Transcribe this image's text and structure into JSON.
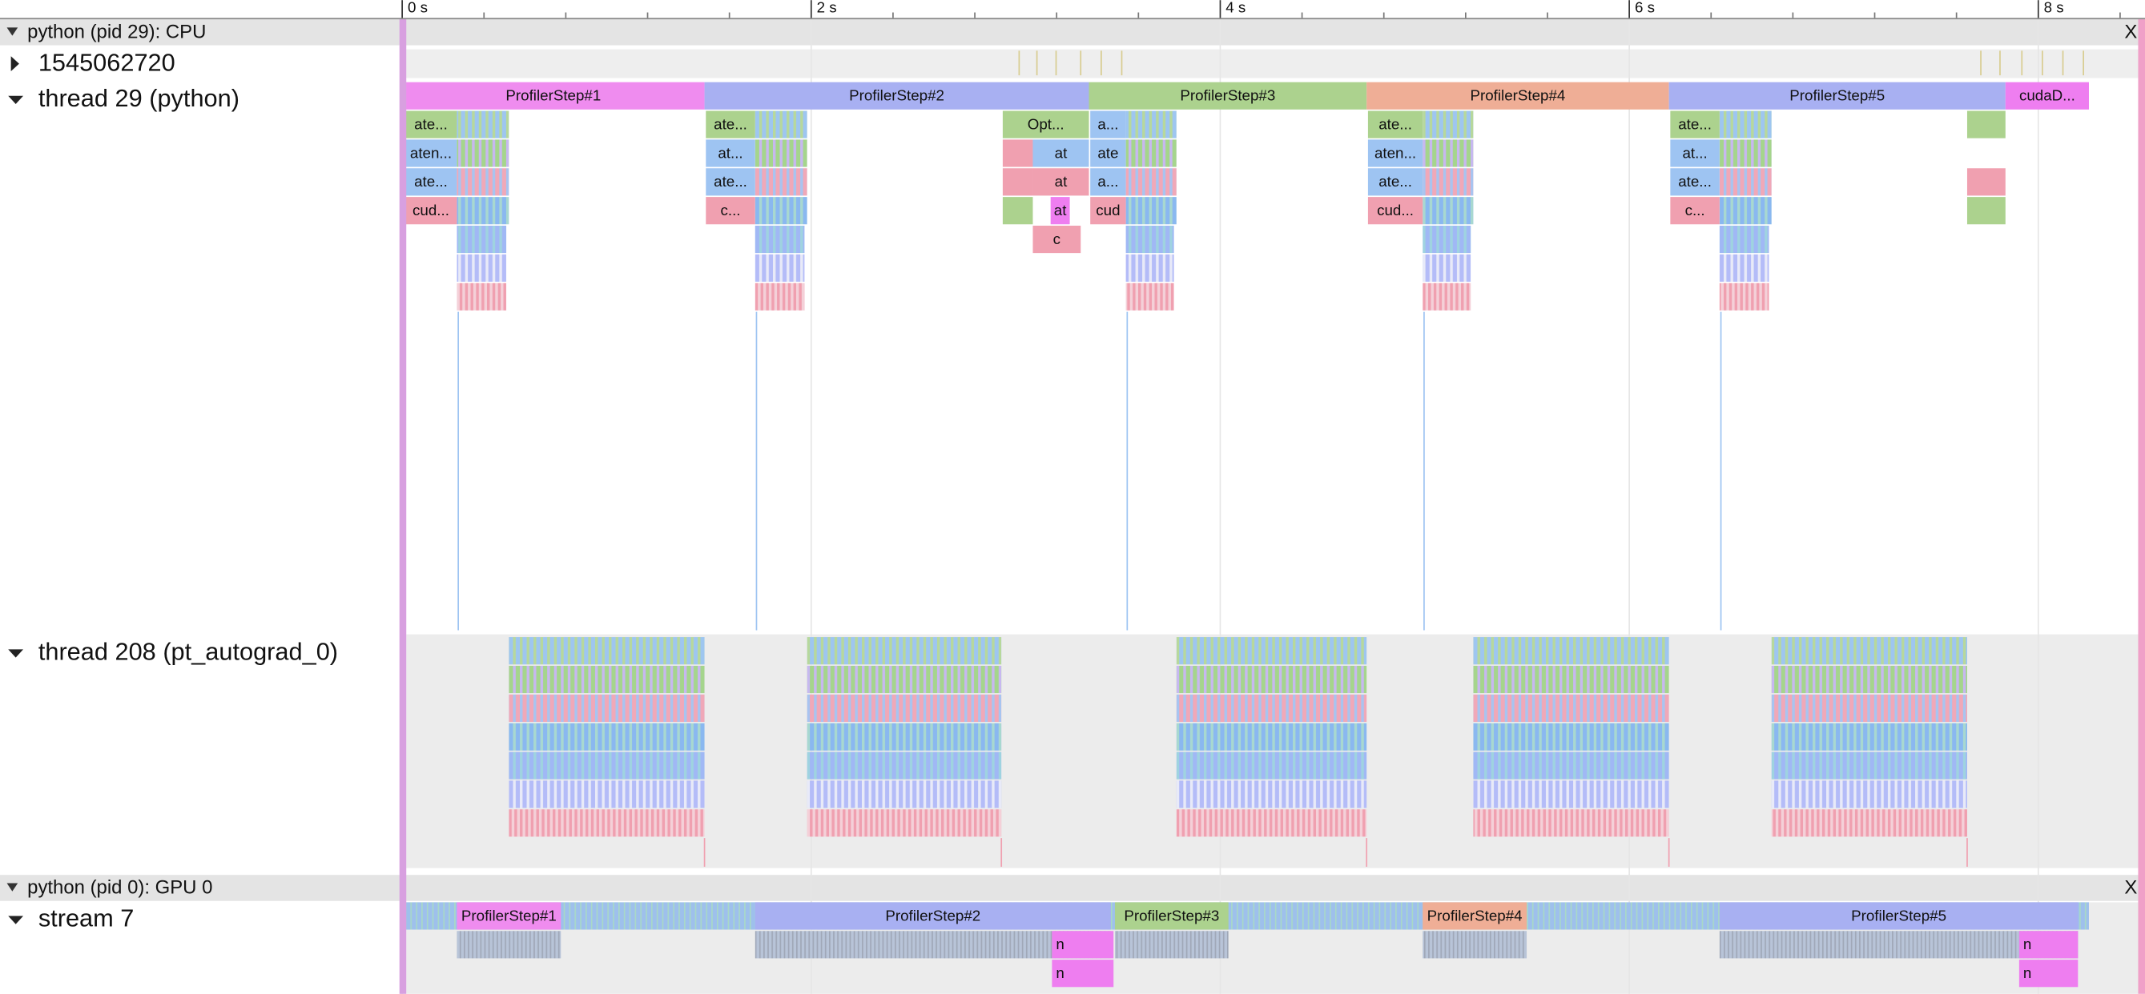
{
  "ruler": {
    "ticks": [
      "0 s",
      "2 s",
      "4 s",
      "6 s",
      "8 s"
    ]
  },
  "processes": [
    {
      "header": "python (pid 29): CPU",
      "close": "X",
      "tracks": [
        {
          "label": "1545062720"
        },
        {
          "label": "thread 29 (python)",
          "slices": [
            "ProfilerStep#1",
            "ProfilerStep#2",
            "ProfilerStep#3",
            "ProfilerStep#4",
            "ProfilerStep#5",
            "cudaD...",
            "ate...",
            "ate...",
            "Opt...",
            "a...",
            "ate...",
            "ate...",
            "aten...",
            "at...",
            "at",
            "ate",
            "aten...",
            "at...",
            "ate...",
            "ate...",
            "at",
            "a...",
            "ate...",
            "ate...",
            "cud...",
            "c...",
            "at",
            "cud",
            "cud...",
            "c...",
            "c"
          ]
        },
        {
          "label": "thread 208 (pt_autograd_0)"
        }
      ]
    },
    {
      "header": "python (pid 0): GPU 0",
      "close": "X",
      "tracks": [
        {
          "label": "stream 7",
          "slices": [
            "ProfilerStep#1",
            "ProfilerStep#2",
            "ProfilerStep#3",
            "ProfilerStep#4",
            "ProfilerStep#5",
            "n",
            "n",
            "n",
            "n"
          ]
        }
      ]
    }
  ]
}
